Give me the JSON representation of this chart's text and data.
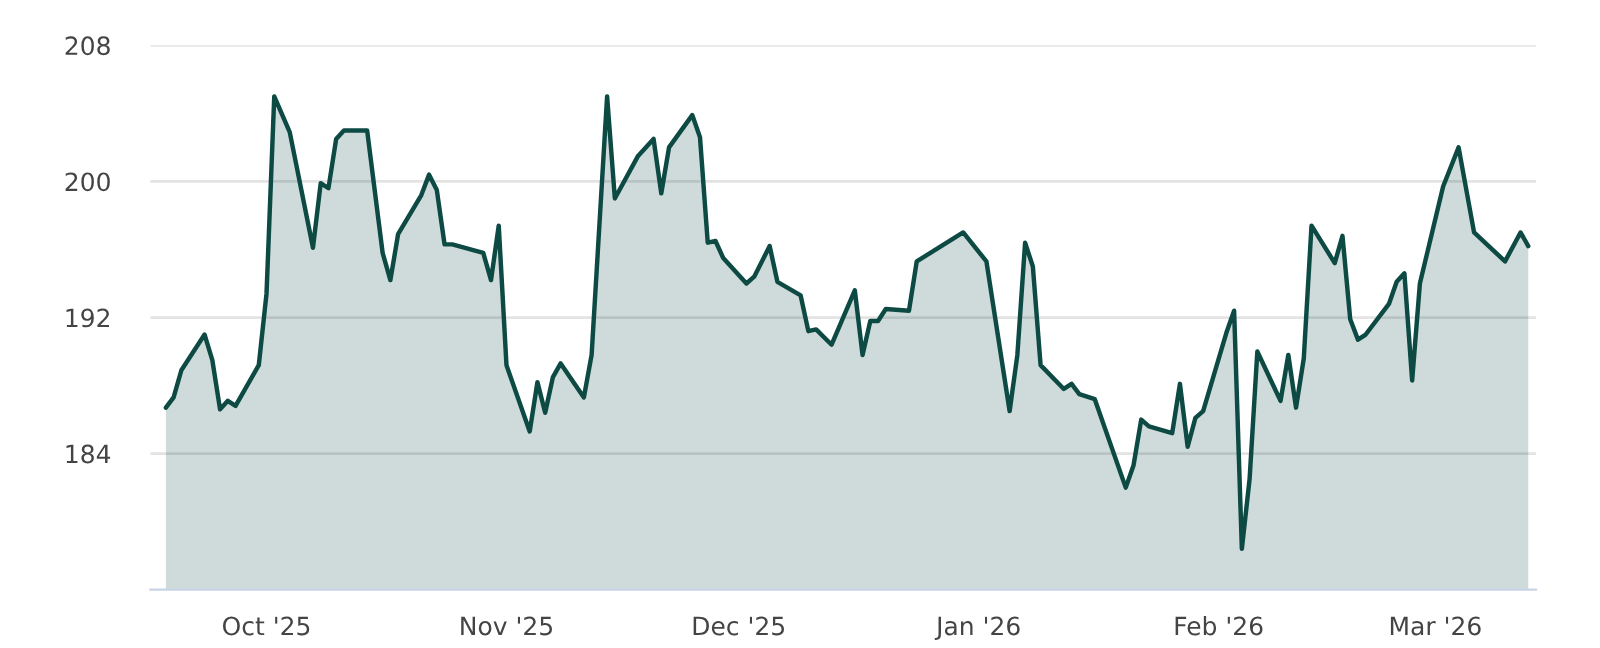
{
  "chart_data": {
    "type": "area",
    "x": [
      "2025-09-18",
      "2025-09-19",
      "2025-09-20",
      "2025-09-23",
      "2025-09-24",
      "2025-09-25",
      "2025-09-26",
      "2025-09-27",
      "2025-09-30",
      "2025-10-01",
      "2025-10-02",
      "2025-10-04",
      "2025-10-07",
      "2025-10-08",
      "2025-10-09",
      "2025-10-10",
      "2025-10-11",
      "2025-10-14",
      "2025-10-16",
      "2025-10-17",
      "2025-10-18",
      "2025-10-21",
      "2025-10-22",
      "2025-10-23",
      "2025-10-24",
      "2025-10-25",
      "2025-10-29",
      "2025-10-30",
      "2025-10-31",
      "2025-11-01",
      "2025-11-04",
      "2025-11-05",
      "2025-11-06",
      "2025-11-07",
      "2025-11-08",
      "2025-11-11",
      "2025-11-12",
      "2025-11-14",
      "2025-11-15",
      "2025-11-18",
      "2025-11-20",
      "2025-11-21",
      "2025-11-22",
      "2025-11-25",
      "2025-11-26",
      "2025-11-27",
      "2025-11-28",
      "2025-11-29",
      "2025-12-02",
      "2025-12-03",
      "2025-12-05",
      "2025-12-06",
      "2025-12-09",
      "2025-12-10",
      "2025-12-11",
      "2025-12-13",
      "2025-12-16",
      "2025-12-17",
      "2025-12-18",
      "2025-12-19",
      "2025-12-20",
      "2025-12-23",
      "2025-12-24",
      "2025-12-30",
      "2026-01-02",
      "2026-01-05",
      "2026-01-06",
      "2026-01-07",
      "2026-01-08",
      "2026-01-09",
      "2026-01-12",
      "2026-01-13",
      "2026-01-14",
      "2026-01-16",
      "2026-01-20",
      "2026-01-21",
      "2026-01-22",
      "2026-01-23",
      "2026-01-26",
      "2026-01-27",
      "2026-01-28",
      "2026-01-29",
      "2026-01-30",
      "2026-02-02",
      "2026-02-03",
      "2026-02-04",
      "2026-02-05",
      "2026-02-06",
      "2026-02-09",
      "2026-02-10",
      "2026-02-11",
      "2026-02-12",
      "2026-02-13",
      "2026-02-16",
      "2026-02-17",
      "2026-02-18",
      "2026-02-19",
      "2026-02-20",
      "2026-02-23",
      "2026-02-24",
      "2026-02-25",
      "2026-02-26",
      "2026-02-27",
      "2026-03-02",
      "2026-03-04",
      "2026-03-06",
      "2026-03-10",
      "2026-03-12",
      "2026-03-13"
    ],
    "series": [
      {
        "color": "#0d4a44",
        "values": [
          186.7,
          187.3,
          188.9,
          191.0,
          189.5,
          186.6,
          187.1,
          186.8,
          189.2,
          193.4,
          205.0,
          202.9,
          196.1,
          199.9,
          199.6,
          202.5,
          203.0,
          203.0,
          195.8,
          194.2,
          196.9,
          199.2,
          200.4,
          199.5,
          196.3,
          196.3,
          195.8,
          194.2,
          197.4,
          189.2,
          185.3,
          188.2,
          186.4,
          188.5,
          189.3,
          187.3,
          189.8,
          205.0,
          199.0,
          201.5,
          202.5,
          199.3,
          202.0,
          203.9,
          202.6,
          196.4,
          196.5,
          195.5,
          194.0,
          194.4,
          196.2,
          194.1,
          193.3,
          191.2,
          191.3,
          190.4,
          193.6,
          189.8,
          191.8,
          191.8,
          192.5,
          192.4,
          195.3,
          197.0,
          195.3,
          186.5,
          189.8,
          196.4,
          195.0,
          189.2,
          187.8,
          188.1,
          187.5,
          187.2,
          182.0,
          183.3,
          186.0,
          185.6,
          185.2,
          188.1,
          184.4,
          186.1,
          186.5,
          191.1,
          192.4,
          178.4,
          182.5,
          190.0,
          187.1,
          189.8,
          186.7,
          189.6,
          197.4,
          195.2,
          196.8,
          191.9,
          190.7,
          191.0,
          192.8,
          194.1,
          194.6,
          188.3,
          194.0,
          199.7,
          202.0,
          197.0,
          195.3,
          197.0,
          196.2
        ]
      }
    ],
    "xlim": [
      "2025-09-16",
      "2026-03-14"
    ],
    "xticks": [
      {
        "value": "2025-10-01",
        "label": "Oct '25"
      },
      {
        "value": "2025-11-01",
        "label": "Nov '25"
      },
      {
        "value": "2025-12-01",
        "label": "Dec '25"
      },
      {
        "value": "2026-01-01",
        "label": "Jan '26"
      },
      {
        "value": "2026-02-01",
        "label": "Feb '26"
      },
      {
        "value": "2026-03-01",
        "label": "Mar '26"
      }
    ],
    "ylim": [
      176,
      208
    ],
    "yticks": [
      184,
      192,
      200,
      208
    ],
    "grid": "y",
    "legend": false
  }
}
